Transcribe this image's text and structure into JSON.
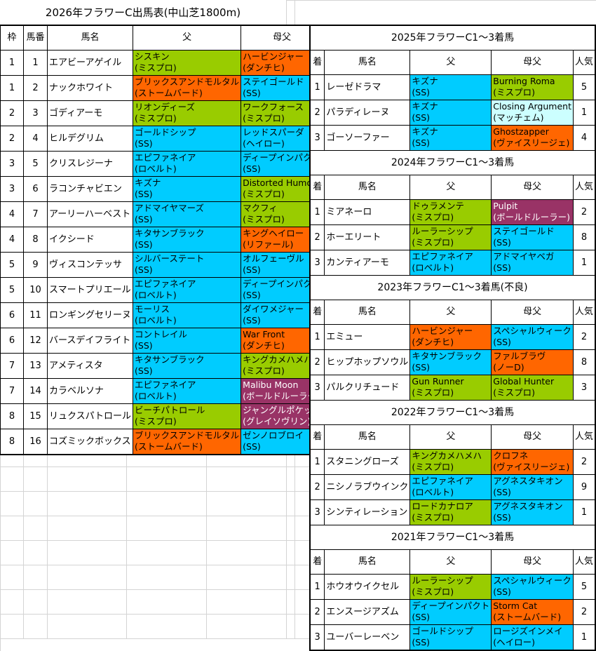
{
  "title": "2026年フラワーC出馬表(中山芝1800m)",
  "colors": {
    "mispro": "#99cc00",
    "danzig": "#ff6600",
    "ss": "#00ccff",
    "purple": "#993366",
    "lightcyan": "#ccffff"
  },
  "left": {
    "headers": [
      "枠",
      "馬番",
      "馬名",
      "父",
      "母父"
    ],
    "rows": [
      {
        "waku": "1",
        "num": "1",
        "name": "エアビーアゲイル",
        "sire": {
          "name": "シスキン",
          "line": "(ミスプロ)",
          "color": "#99cc00"
        },
        "dam_sire": {
          "name": "ハービンジャー",
          "line": "(ダンチヒ)",
          "color": "#ff6600"
        }
      },
      {
        "waku": "1",
        "num": "2",
        "name": "ナックホワイト",
        "sire": {
          "name": "ブリックスアンドモルタル",
          "line": "(ストームバード)",
          "color": "#ff6600"
        },
        "dam_sire": {
          "name": "ステイゴールド",
          "line": "(SS)",
          "color": "#00ccff"
        }
      },
      {
        "waku": "2",
        "num": "3",
        "name": "ゴディアーモ",
        "sire": {
          "name": "リオンディーズ",
          "line": "(ミスプロ)",
          "color": "#99cc00"
        },
        "dam_sire": {
          "name": "ワークフォース",
          "line": "(ミスプロ)",
          "color": "#99cc00"
        }
      },
      {
        "waku": "2",
        "num": "4",
        "name": "ヒルデグリム",
        "sire": {
          "name": "ゴールドシップ",
          "line": "(SS)",
          "color": "#00ccff"
        },
        "dam_sire": {
          "name": "レッドスパーダ",
          "line": "(ヘイロー)",
          "color": "#00ccff"
        }
      },
      {
        "waku": "3",
        "num": "5",
        "name": "クリスレジーナ",
        "sire": {
          "name": "エピファネイア",
          "line": "(ロベルト)",
          "color": "#00ccff"
        },
        "dam_sire": {
          "name": "ディープインパクト",
          "line": "(SS)",
          "color": "#00ccff"
        }
      },
      {
        "waku": "3",
        "num": "6",
        "name": "ラコンチャビエン",
        "sire": {
          "name": "キズナ",
          "line": "(SS)",
          "color": "#00ccff"
        },
        "dam_sire": {
          "name": "Distorted Humor",
          "line": "(ミスプロ)",
          "color": "#99cc00"
        }
      },
      {
        "waku": "4",
        "num": "7",
        "name": "アーリーハーベスト",
        "sire": {
          "name": "アドマイヤマーズ",
          "line": "(SS)",
          "color": "#00ccff"
        },
        "dam_sire": {
          "name": "マクフィ",
          "line": "(ミスプロ)",
          "color": "#99cc00"
        }
      },
      {
        "waku": "4",
        "num": "8",
        "name": "イクシード",
        "sire": {
          "name": "キタサンブラック",
          "line": "(SS)",
          "color": "#00ccff"
        },
        "dam_sire": {
          "name": "キングヘイロー",
          "line": "(リファール)",
          "color": "#ff6600"
        }
      },
      {
        "waku": "5",
        "num": "9",
        "name": "ヴィスコンテッサ",
        "sire": {
          "name": "シルバーステート",
          "line": "(SS)",
          "color": "#00ccff"
        },
        "dam_sire": {
          "name": "オルフェーヴル",
          "line": "(SS)",
          "color": "#00ccff"
        }
      },
      {
        "waku": "5",
        "num": "10",
        "name": "スマートプリエール",
        "sire": {
          "name": "エピファネイア",
          "line": "(ロベルト)",
          "color": "#00ccff"
        },
        "dam_sire": {
          "name": "ディープインパクト",
          "line": "(SS)",
          "color": "#00ccff"
        }
      },
      {
        "waku": "6",
        "num": "11",
        "name": "ロンギングセリーヌ",
        "sire": {
          "name": "モーリス",
          "line": "(ロベルト)",
          "color": "#00ccff"
        },
        "dam_sire": {
          "name": "ダイワメジャー",
          "line": "(SS)",
          "color": "#00ccff"
        }
      },
      {
        "waku": "6",
        "num": "12",
        "name": "バースデイフライト",
        "sire": {
          "name": "コントレイル",
          "line": "(SS)",
          "color": "#00ccff"
        },
        "dam_sire": {
          "name": "War Front",
          "line": "(ダンチヒ)",
          "color": "#ff6600"
        }
      },
      {
        "waku": "7",
        "num": "13",
        "name": "アメティスタ",
        "sire": {
          "name": "キタサンブラック",
          "line": "(SS)",
          "color": "#00ccff"
        },
        "dam_sire": {
          "name": "キングカメハメハ",
          "line": "(ミスプロ)",
          "color": "#99cc00"
        }
      },
      {
        "waku": "7",
        "num": "14",
        "name": "カラベルソナ",
        "sire": {
          "name": "エピファネイア",
          "line": "(ロベルト)",
          "color": "#00ccff"
        },
        "dam_sire": {
          "name": "Malibu Moon",
          "line": "(ボールドルーラー)",
          "color": "#993366"
        }
      },
      {
        "waku": "8",
        "num": "15",
        "name": "リュクスパトロール",
        "sire": {
          "name": "ビーチパトロール",
          "line": "(ミスプロ)",
          "color": "#99cc00"
        },
        "dam_sire": {
          "name": "ジャングルポケット",
          "line": "(グレイソヴリン)",
          "color": "#993366"
        }
      },
      {
        "waku": "8",
        "num": "16",
        "name": "コズミックボックス",
        "sire": {
          "name": "ブリックスアンドモルタル",
          "line": "(ストームバード)",
          "color": "#ff6600"
        },
        "dam_sire": {
          "name": "ゼンノロブロイ",
          "line": "(SS)",
          "color": "#00ccff"
        }
      }
    ]
  },
  "past": {
    "headers": [
      "着",
      "馬名",
      "父",
      "母父",
      "人気"
    ],
    "years": [
      {
        "title": "2025年フラワーC1～3着馬",
        "rows": [
          {
            "pos": "1",
            "name": "レーゼドラマ",
            "sire": {
              "name": "キズナ",
              "line": "(SS)",
              "color": "#00ccff"
            },
            "dam_sire": {
              "name": "Burning Roma",
              "line": "(ミスプロ)",
              "color": "#99cc00"
            },
            "pop": "5"
          },
          {
            "pos": "2",
            "name": "パラディレーヌ",
            "sire": {
              "name": "キズナ",
              "line": "(SS)",
              "color": "#00ccff"
            },
            "dam_sire": {
              "name": "Closing Argument",
              "line": "(マッチェム)",
              "color": "#ccffff"
            },
            "pop": "1"
          },
          {
            "pos": "3",
            "name": "ゴーソーファー",
            "sire": {
              "name": "キズナ",
              "line": "(SS)",
              "color": "#00ccff"
            },
            "dam_sire": {
              "name": "Ghostzapper",
              "line": "(ヴァイスリージェ)",
              "color": "#ff6600"
            },
            "pop": "4"
          }
        ]
      },
      {
        "title": "2024年フラワーC1～3着馬",
        "rows": [
          {
            "pos": "1",
            "name": "ミアネーロ",
            "sire": {
              "name": "ドゥラメンテ",
              "line": "(ミスプロ)",
              "color": "#99cc00"
            },
            "dam_sire": {
              "name": "Pulpit",
              "line": "(ボールドルーラー)",
              "color": "#993366"
            },
            "pop": "2"
          },
          {
            "pos": "2",
            "name": "ホーエリート",
            "sire": {
              "name": "ルーラーシップ",
              "line": "(ミスプロ)",
              "color": "#99cc00"
            },
            "dam_sire": {
              "name": "ステイゴールド",
              "line": "(SS)",
              "color": "#00ccff"
            },
            "pop": "8"
          },
          {
            "pos": "3",
            "name": "カンティアーモ",
            "sire": {
              "name": "エピファネイア",
              "line": "(ロベルト)",
              "color": "#00ccff"
            },
            "dam_sire": {
              "name": "アドマイヤベガ",
              "line": "(SS)",
              "color": "#00ccff"
            },
            "pop": "1"
          }
        ]
      },
      {
        "title": "2023年フラワーC1～3着馬(不良)",
        "rows": [
          {
            "pos": "1",
            "name": "エミュー",
            "sire": {
              "name": "ハービンジャー",
              "line": "(ダンチヒ)",
              "color": "#ff6600"
            },
            "dam_sire": {
              "name": "スペシャルウィーク",
              "line": "(SS)",
              "color": "#00ccff"
            },
            "pop": "2"
          },
          {
            "pos": "2",
            "name": "ヒップホップソウル",
            "sire": {
              "name": "キタサンブラック",
              "line": "(SS)",
              "color": "#00ccff"
            },
            "dam_sire": {
              "name": "ファルブラヴ",
              "line": "(ノーD)",
              "color": "#ff6600"
            },
            "pop": "8"
          },
          {
            "pos": "3",
            "name": "パルクリチュード",
            "sire": {
              "name": "Gun Runner",
              "line": "(ミスプロ)",
              "color": "#99cc00"
            },
            "dam_sire": {
              "name": "Global Hunter",
              "line": "(ミスプロ)",
              "color": "#99cc00"
            },
            "pop": "3"
          }
        ]
      },
      {
        "title": "2022年フラワーC1～3着馬",
        "rows": [
          {
            "pos": "1",
            "name": "スタニングローズ",
            "sire": {
              "name": "キングカメハメハ",
              "line": "(ミスプロ)",
              "color": "#99cc00"
            },
            "dam_sire": {
              "name": "クロフネ",
              "line": "(ヴァイスリージェ)",
              "color": "#ff6600"
            },
            "pop": "2"
          },
          {
            "pos": "2",
            "name": "ニシノラブウインク",
            "sire": {
              "name": "エピファネイア",
              "line": "(ロベルト)",
              "color": "#00ccff"
            },
            "dam_sire": {
              "name": "アグネスタキオン",
              "line": "(SS)",
              "color": "#00ccff"
            },
            "pop": "9"
          },
          {
            "pos": "3",
            "name": "シンティレーション",
            "sire": {
              "name": "ロードカナロア",
              "line": "(ミスプロ)",
              "color": "#99cc00"
            },
            "dam_sire": {
              "name": "アグネスタキオン",
              "line": "(SS)",
              "color": "#00ccff"
            },
            "pop": "1"
          }
        ]
      },
      {
        "title": "2021年フラワーC1～3着馬",
        "rows": [
          {
            "pos": "1",
            "name": "ホウオウイクセル",
            "sire": {
              "name": "ルーラーシップ",
              "line": "(ミスプロ)",
              "color": "#99cc00"
            },
            "dam_sire": {
              "name": "スペシャルウィーク",
              "line": "(SS)",
              "color": "#00ccff"
            },
            "pop": "5"
          },
          {
            "pos": "2",
            "name": "エンスージアズム",
            "sire": {
              "name": "ディープインパクト",
              "line": "(SS)",
              "color": "#00ccff"
            },
            "dam_sire": {
              "name": "Storm Cat",
              "line": "(ストームバード)",
              "color": "#ff6600"
            },
            "pop": "2"
          },
          {
            "pos": "3",
            "name": "ユーバーレーベン",
            "sire": {
              "name": "ゴールドシップ",
              "line": "(SS)",
              "color": "#00ccff"
            },
            "dam_sire": {
              "name": "ロージズインメイ",
              "line": "(ヘイロー)",
              "color": "#00ccff"
            },
            "pop": "1"
          }
        ]
      }
    ]
  }
}
